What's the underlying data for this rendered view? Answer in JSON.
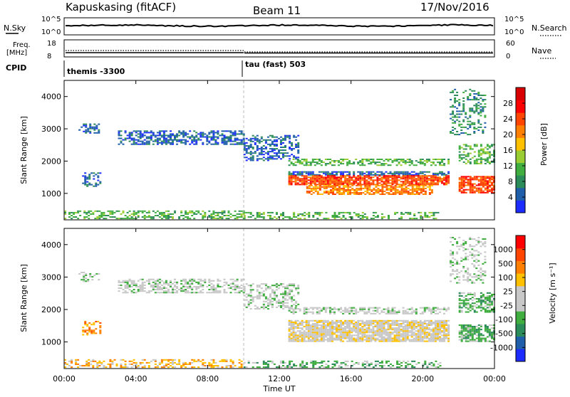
{
  "header": {
    "station": "Kapuskasing (fitACF)",
    "beam": "Beam 11",
    "date": "17/Nov/2016"
  },
  "top_panels": {
    "nsky_label": "N.Sky",
    "nsky_ticks": [
      "10^5",
      "10^0"
    ],
    "nsearch_label": "N.Search",
    "nsearch_ticks": [
      "10^5",
      "10^0"
    ],
    "freq_label_1": "Freq.",
    "freq_label_2": "[MHz]",
    "freq_ticks": [
      "18",
      "8"
    ],
    "nave_label": "Nave",
    "nave_ticks": [
      "60",
      "0"
    ],
    "cpid_label": "CPID",
    "cpid_segments": [
      {
        "label": "themis -3300",
        "start_hour": 0
      },
      {
        "label": "tau (fast) 503",
        "start_hour": 10
      }
    ]
  },
  "chart_data": [
    {
      "type": "heatmap",
      "name": "power-panel",
      "ylabel": "Slant Range [km]",
      "xlabel": "",
      "x_ticks": [
        "00:00",
        "04:00",
        "08:00",
        "12:00",
        "16:00",
        "20:00",
        "00:00"
      ],
      "xlim_hours": [
        0,
        24
      ],
      "y_ticks": [
        1000,
        2000,
        3000,
        4000
      ],
      "ylim": [
        180,
        4500
      ],
      "colorbar": {
        "label": "Power [dB]",
        "ticks": [
          "4",
          "8",
          "12",
          "16",
          "20",
          "24",
          "28"
        ],
        "colors": [
          "#1c2cff",
          "#1f5faa",
          "#2b8c5a",
          "#3fae3f",
          "#9acd32",
          "#ffc000",
          "#ff8000",
          "#ff4500",
          "#ff0000",
          "#d80000"
        ]
      },
      "regions": [
        {
          "t0": 0.0,
          "t1": 10.0,
          "r0": 200,
          "r1": 450,
          "level": 3,
          "density": 0.45
        },
        {
          "t0": 3.0,
          "t1": 10.0,
          "r0": 2500,
          "r1": 2950,
          "level": 1,
          "density": 0.55
        },
        {
          "t0": 0.8,
          "t1": 2.0,
          "r0": 2850,
          "r1": 3150,
          "level": 1,
          "density": 0.4
        },
        {
          "t0": 1.0,
          "t1": 2.0,
          "r0": 1200,
          "r1": 1650,
          "level": 1,
          "density": 0.45
        },
        {
          "t0": 10.0,
          "t1": 13.0,
          "r0": 2000,
          "r1": 2800,
          "level": 1,
          "density": 0.45
        },
        {
          "t0": 12.5,
          "t1": 21.5,
          "r0": 1550,
          "r1": 1650,
          "level": 1,
          "density": 0.7
        },
        {
          "t0": 12.5,
          "t1": 21.5,
          "r0": 1850,
          "r1": 2050,
          "level": 3,
          "density": 0.55
        },
        {
          "t0": 12.5,
          "t1": 21.5,
          "r0": 1250,
          "r1": 1550,
          "level": 7,
          "density": 0.85
        },
        {
          "t0": 13.5,
          "t1": 20.5,
          "r0": 950,
          "r1": 1250,
          "level": 6,
          "density": 0.75
        },
        {
          "t0": 10.0,
          "t1": 21.0,
          "r0": 200,
          "r1": 400,
          "level": 3,
          "density": 0.4
        },
        {
          "t0": 22.0,
          "t1": 24.0,
          "r0": 1000,
          "r1": 1500,
          "level": 7,
          "density": 0.75
        },
        {
          "t0": 22.0,
          "t1": 24.0,
          "r0": 1900,
          "r1": 2500,
          "level": 3,
          "density": 0.55
        },
        {
          "t0": 21.5,
          "t1": 23.5,
          "r0": 2800,
          "r1": 4200,
          "level": 2,
          "density": 0.3
        }
      ]
    },
    {
      "type": "heatmap",
      "name": "velocity-panel",
      "ylabel": "Slant Range [km]",
      "xlabel": "Time UT",
      "x_ticks": [
        "00:00",
        "04:00",
        "08:00",
        "12:00",
        "16:00",
        "20:00",
        "00:00"
      ],
      "xlim_hours": [
        0,
        24
      ],
      "y_ticks": [
        1000,
        2000,
        3000,
        4000
      ],
      "ylim": [
        180,
        4500
      ],
      "colorbar": {
        "label": "Velocity [m s⁻¹]",
        "ticks": [
          "1000",
          "500",
          "100",
          "25",
          "-25",
          "-100",
          "-500",
          "-1000"
        ],
        "colors": [
          "#1c2cff",
          "#1f5faa",
          "#2b8c5a",
          "#3fae3f",
          "#c8c8c8",
          "#c8c8c8",
          "#ffc000",
          "#ff8000",
          "#ff4500",
          "#ff0000"
        ]
      },
      "regions": [
        {
          "t0": 0.0,
          "t1": 10.0,
          "r0": 200,
          "r1": 450,
          "level": 6,
          "density": 0.4
        },
        {
          "t0": 3.0,
          "t1": 10.0,
          "r0": 2500,
          "r1": 2950,
          "level": 4,
          "density": 0.55
        },
        {
          "t0": 0.8,
          "t1": 2.0,
          "r0": 2850,
          "r1": 3150,
          "level": 4,
          "density": 0.35
        },
        {
          "t0": 1.0,
          "t1": 2.0,
          "r0": 1200,
          "r1": 1650,
          "level": 7,
          "density": 0.45
        },
        {
          "t0": 10.0,
          "t1": 13.0,
          "r0": 2000,
          "r1": 2800,
          "level": 4,
          "density": 0.45
        },
        {
          "t0": 12.5,
          "t1": 21.5,
          "r0": 1000,
          "r1": 1650,
          "level": 5,
          "density": 0.85
        },
        {
          "t0": 12.5,
          "t1": 21.5,
          "r0": 1850,
          "r1": 2050,
          "level": 4,
          "density": 0.55
        },
        {
          "t0": 10.0,
          "t1": 21.0,
          "r0": 200,
          "r1": 400,
          "level": 3,
          "density": 0.4
        },
        {
          "t0": 22.0,
          "t1": 24.0,
          "r0": 1000,
          "r1": 1500,
          "level": 3,
          "density": 0.7
        },
        {
          "t0": 22.0,
          "t1": 24.0,
          "r0": 1900,
          "r1": 2500,
          "level": 3,
          "density": 0.55
        },
        {
          "t0": 21.5,
          "t1": 23.5,
          "r0": 2800,
          "r1": 4200,
          "level": 4,
          "density": 0.3
        }
      ]
    }
  ]
}
